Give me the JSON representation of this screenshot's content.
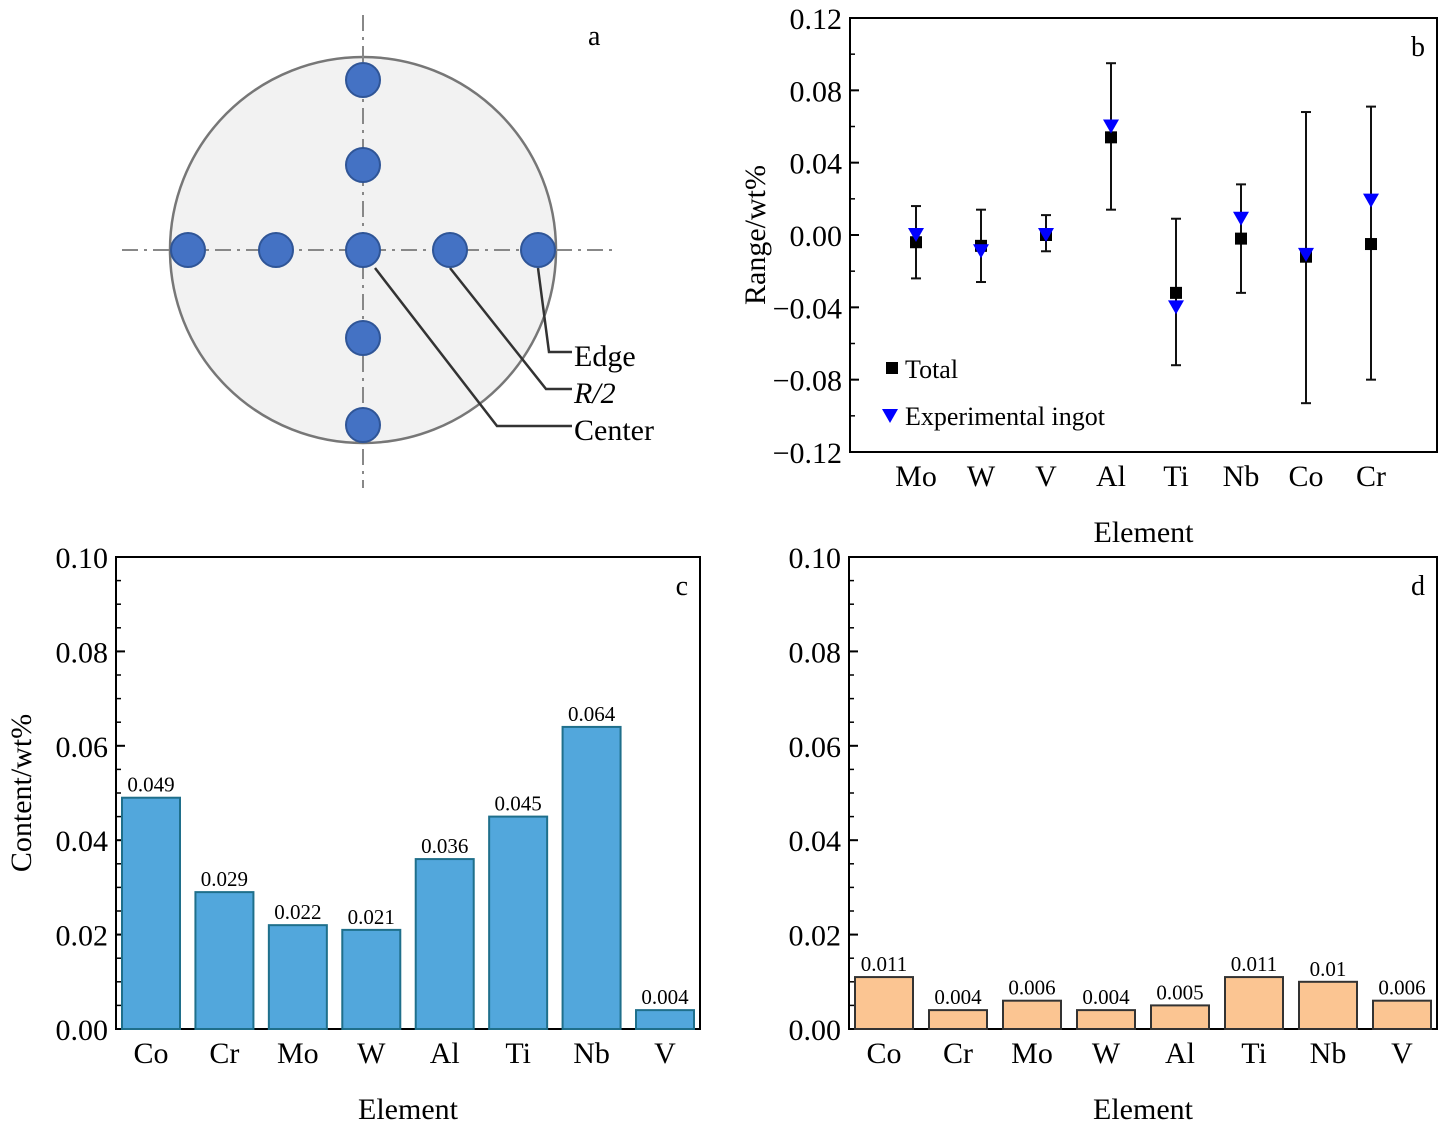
{
  "panel_a": {
    "label": "a",
    "annotations": [
      "Edge",
      "R/2",
      "Center"
    ],
    "colors": {
      "disk": "#f2f2f2",
      "point": "#4472c4"
    }
  },
  "chart_data": [
    {
      "panel": "b",
      "type": "scatter",
      "xlabel": "Element",
      "ylabel": "Range/wt%",
      "categories": [
        "Mo",
        "W",
        "V",
        "Al",
        "Ti",
        "Nb",
        "Co",
        "Cr"
      ],
      "ylim": [
        -0.12,
        0.12
      ],
      "yticks": [
        "0.12",
        "0.08",
        "0.04",
        "0.00",
        "−0.04",
        "−0.08",
        "−0.12"
      ],
      "legend_position": "bottom-left",
      "series": [
        {
          "name": "Total",
          "marker": "square",
          "color": "#000000",
          "values": [
            -0.004,
            -0.006,
            0.0,
            0.054,
            -0.032,
            -0.002,
            -0.012,
            -0.005
          ],
          "error_high": [
            0.016,
            0.014,
            0.011,
            0.095,
            0.009,
            0.028,
            0.068,
            0.071
          ],
          "error_low": [
            -0.024,
            -0.026,
            -0.009,
            0.014,
            -0.072,
            -0.032,
            -0.093,
            -0.08
          ]
        },
        {
          "name": "Experimental ingot",
          "marker": "triangle-down",
          "color": "#0000ff",
          "values": [
            0.0,
            -0.009,
            0.0,
            0.06,
            -0.04,
            0.009,
            -0.011,
            0.019
          ]
        }
      ]
    },
    {
      "panel": "c",
      "type": "bar",
      "xlabel": "Element",
      "ylabel": "Content/wt%",
      "categories": [
        "Co",
        "Cr",
        "Mo",
        "W",
        "Al",
        "Ti",
        "Nb",
        "V"
      ],
      "values": [
        0.049,
        0.029,
        0.022,
        0.021,
        0.036,
        0.045,
        0.064,
        0.004
      ],
      "data_labels": [
        "0.049",
        "0.029",
        "0.022",
        "0.021",
        "0.036",
        "0.045",
        "0.064",
        "0.004"
      ],
      "ylim": [
        0,
        0.1
      ],
      "yticks": [
        "0.00",
        "0.02",
        "0.04",
        "0.06",
        "0.08",
        "0.10"
      ],
      "color": "#52a7dc"
    },
    {
      "panel": "d",
      "type": "bar",
      "xlabel": "Element",
      "ylabel": "",
      "categories": [
        "Co",
        "Cr",
        "Mo",
        "W",
        "Al",
        "Ti",
        "Nb",
        "V"
      ],
      "values": [
        0.011,
        0.004,
        0.006,
        0.004,
        0.005,
        0.011,
        0.01,
        0.006
      ],
      "data_labels": [
        "0.011",
        "0.004",
        "0.006",
        "0.004",
        "0.005",
        "0.011",
        "0.01",
        "0.006"
      ],
      "ylim": [
        0,
        0.1
      ],
      "yticks": [
        "0.00",
        "0.02",
        "0.04",
        "0.06",
        "0.08",
        "0.10"
      ],
      "color": "#fbc592"
    }
  ]
}
